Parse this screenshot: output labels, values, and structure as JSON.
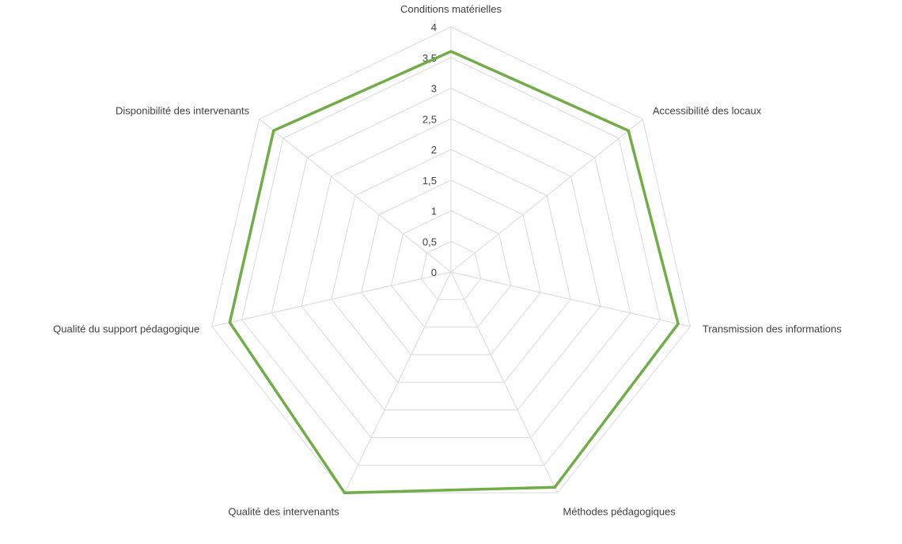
{
  "chart_data": {
    "type": "radar",
    "title": "",
    "categories": [
      "Conditions matérielles",
      "Accessibilité des locaux",
      "Transmission des informations",
      "Méthodes pédagogiques",
      "Qualité des intervenants",
      "Qualité du support pédagogique",
      "Disponibilité des intervenants"
    ],
    "series": [
      {
        "values": [
          3.6,
          3.7,
          3.8,
          3.9,
          4.0,
          3.7,
          3.7
        ]
      }
    ],
    "rlim": [
      0,
      4
    ],
    "ticks": [
      "0",
      "0,5",
      "1",
      "1,5",
      "2",
      "2,5",
      "3",
      "3,5",
      "4"
    ],
    "tick_values": [
      0,
      0.5,
      1,
      1.5,
      2,
      2.5,
      3,
      3.5,
      4
    ],
    "grid": true,
    "legend": "none",
    "colors": {
      "series": "#70AD47",
      "grid": "#D9D9D9",
      "text": "#404040"
    }
  }
}
